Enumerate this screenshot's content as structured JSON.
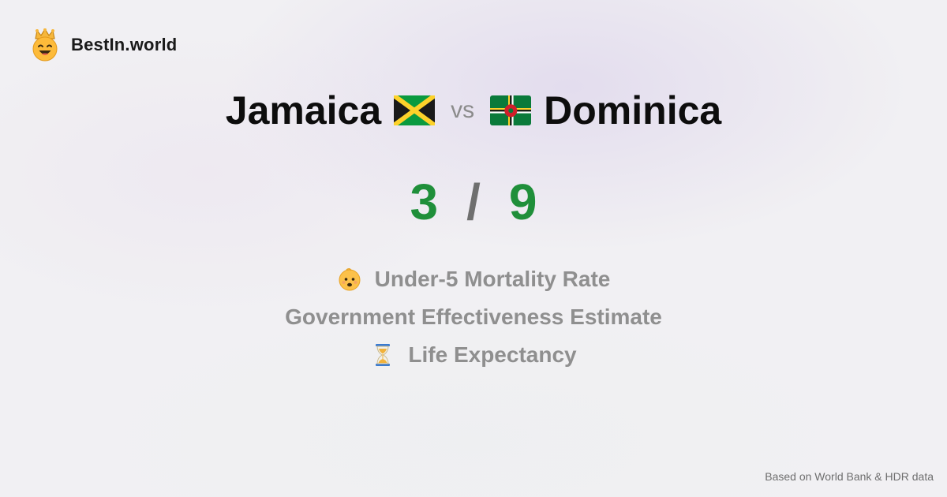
{
  "brand": {
    "name": "BestIn.world",
    "logo_icon": "smiling-king-icon"
  },
  "comparison": {
    "left_country": "Jamaica",
    "left_flag_icon": "jamaica-flag-icon",
    "vs_label": "vs",
    "right_country": "Dominica",
    "right_flag_icon": "dominica-flag-icon"
  },
  "score": {
    "left": "3",
    "separator": "/",
    "right": "9",
    "color": "#1f8f3a"
  },
  "metrics": [
    {
      "label": "Under-5 Mortality Rate",
      "icon": "baby-icon"
    },
    {
      "label": "Government Effectiveness Estimate",
      "icon": ""
    },
    {
      "label": "Life Expectancy",
      "icon": "hourglass-icon"
    }
  ],
  "footer": {
    "source_text": "Based on World Bank & HDR data"
  }
}
